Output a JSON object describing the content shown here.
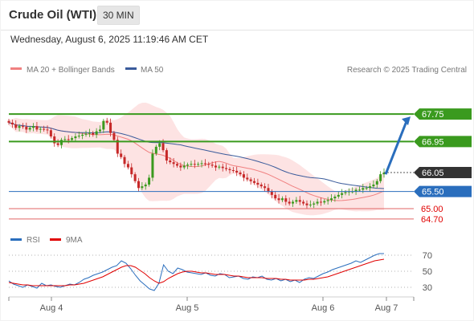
{
  "header": {
    "title": "Crude Oil (WTI)",
    "timeframe": "30 MIN",
    "datetime": "Wednesday, August 6, 2025 11:19:46 AM CET"
  },
  "legend": {
    "ma20": "MA 20 + Bollinger Bands",
    "ma50": "MA 50",
    "credit": "Research © 2025 Trading Central",
    "rsi": "RSI",
    "rsi_ma": "9MA"
  },
  "colors": {
    "resistance": "#3a9a1e",
    "pivot": "#2a6ebd",
    "support": "#e06666",
    "current": "#333333",
    "ma20": "#f08080",
    "ma50": "#3a5b9b",
    "band": "#fde3e3",
    "up_candle": "#3a9a1e",
    "down_candle": "#c62828",
    "arrow": "#2a6ebd"
  },
  "chart_data": [
    {
      "type": "candlestick",
      "title": "",
      "ylim": [
        64.3,
        68.5
      ],
      "x_ticks": [
        "Aug 4",
        "Aug 5",
        "Aug 6",
        "Aug 7"
      ],
      "levels": [
        {
          "label": "67.75",
          "value": 67.75,
          "kind": "resistance"
        },
        {
          "label": "66.95",
          "value": 66.95,
          "kind": "resistance"
        },
        {
          "label": "66.05",
          "value": 66.05,
          "kind": "current"
        },
        {
          "label": "65.50",
          "value": 65.5,
          "kind": "pivot"
        },
        {
          "label": "65.00",
          "value": 65.0,
          "kind": "support"
        },
        {
          "label": "64.70",
          "value": 64.7,
          "kind": "support"
        }
      ],
      "forecast_arrow": {
        "from": 66.0,
        "to": 67.75
      },
      "price": [
        67.5,
        67.45,
        67.35,
        67.4,
        67.38,
        67.3,
        67.35,
        67.4,
        67.3,
        67.32,
        67.3,
        67.28,
        67.1,
        66.9,
        66.85,
        67.0,
        67.02,
        67.0,
        67.05,
        67.1,
        67.12,
        67.15,
        67.18,
        67.2,
        67.15,
        67.25,
        67.3,
        67.55,
        67.5,
        67.2,
        67.0,
        66.6,
        66.5,
        66.3,
        66.2,
        66.0,
        65.8,
        65.6,
        65.65,
        65.7,
        65.9,
        66.6,
        66.8,
        66.9,
        66.7,
        66.4,
        66.35,
        66.3,
        66.25,
        66.2,
        66.25,
        66.28,
        66.3,
        66.28,
        66.3,
        66.32,
        66.3,
        66.28,
        66.25,
        66.2,
        66.22,
        66.18,
        66.15,
        66.12,
        66.1,
        66.05,
        66.0,
        65.9,
        65.85,
        65.8,
        65.75,
        65.7,
        65.65,
        65.6,
        65.5,
        65.4,
        65.3,
        65.25,
        65.3,
        65.2,
        65.15,
        65.2,
        65.25,
        65.2,
        65.15,
        65.1,
        65.12,
        65.15,
        65.2,
        65.18,
        65.22,
        65.25,
        65.3,
        65.35,
        65.4,
        65.45,
        65.48,
        65.5,
        65.5,
        65.55,
        65.55,
        65.6,
        65.6,
        65.65,
        65.7,
        65.8,
        66.0,
        66.05
      ]
    },
    {
      "type": "line",
      "title": "",
      "ylim": [
        20,
        75
      ],
      "y_ticks": [
        70,
        50,
        30
      ],
      "series": [
        {
          "name": "RSI",
          "values": [
            38,
            34,
            32,
            30,
            33,
            31,
            29,
            35,
            32,
            33,
            31,
            30,
            32,
            34,
            33,
            36,
            40,
            42,
            45,
            47,
            49,
            52,
            55,
            57,
            63,
            60,
            53,
            45,
            38,
            33,
            28,
            26,
            35,
            58,
            50,
            47,
            54,
            52,
            49,
            48,
            47,
            46,
            48,
            45,
            44,
            47,
            46,
            42,
            43,
            44,
            41,
            40,
            43,
            42,
            44,
            40,
            39,
            41,
            38,
            40,
            37,
            39,
            36,
            40,
            42,
            41,
            44,
            47,
            49,
            52,
            54,
            56,
            58,
            60,
            63,
            61,
            64,
            67,
            70,
            72,
            72
          ]
        },
        {
          "name": "9MA",
          "values": [
            36,
            35,
            34,
            33,
            33,
            32,
            32,
            32,
            32,
            32,
            32,
            32,
            32,
            33,
            33,
            34,
            35,
            37,
            39,
            41,
            43,
            46,
            49,
            52,
            55,
            57,
            57,
            55,
            51,
            47,
            42,
            38,
            35,
            37,
            41,
            44,
            47,
            49,
            50,
            50,
            49,
            48,
            48,
            47,
            46,
            46,
            46,
            45,
            44,
            44,
            43,
            42,
            42,
            42,
            42,
            41,
            41,
            41,
            40,
            40,
            39,
            39,
            39,
            39,
            40,
            40,
            41,
            42,
            43,
            45,
            47,
            49,
            51,
            53,
            55,
            57,
            59,
            61,
            63,
            64,
            65
          ]
        }
      ]
    }
  ]
}
